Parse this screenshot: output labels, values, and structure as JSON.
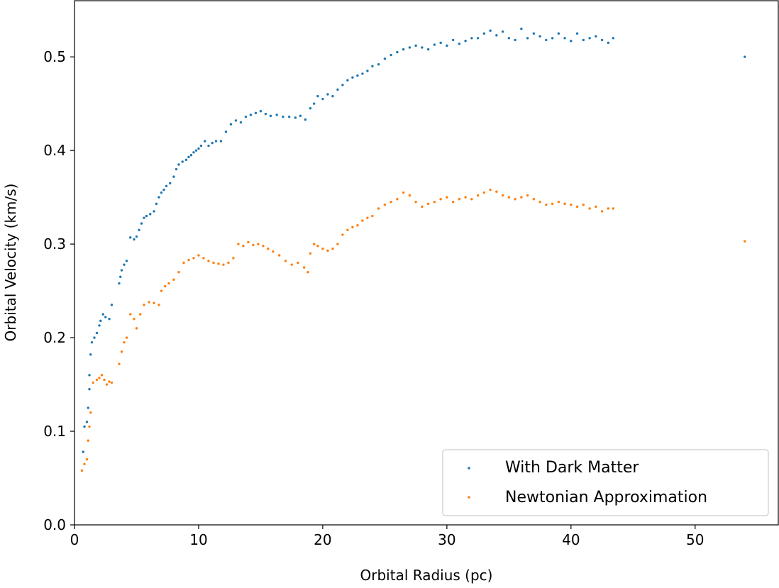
{
  "chart_data": {
    "type": "scatter",
    "xlabel": "Orbital Radius (pc)",
    "ylabel": "Orbital Velocity (km/s)",
    "xlim": [
      0,
      56.7
    ],
    "ylim": [
      0,
      0.56
    ],
    "x_ticks": [
      0,
      10,
      20,
      30,
      40,
      50
    ],
    "y_ticks": [
      0.0,
      0.1,
      0.2,
      0.3,
      0.4,
      0.5
    ],
    "x_tick_labels": [
      "0",
      "10",
      "20",
      "30",
      "40",
      "50"
    ],
    "y_tick_labels": [
      "0.0",
      "0.1",
      "0.2",
      "0.3",
      "0.4",
      "0.5"
    ],
    "grid": false,
    "legend_position": "lower-right",
    "series": [
      {
        "name": "With Dark Matter",
        "color": "#1f77b4",
        "x": [
          0.7,
          0.8,
          1.0,
          1.1,
          1.2,
          1.2,
          1.3,
          1.4,
          1.6,
          1.8,
          2.0,
          2.1,
          2.3,
          2.5,
          2.8,
          3.0,
          3.6,
          3.7,
          3.8,
          4.0,
          4.2,
          4.5,
          4.8,
          5.0,
          5.2,
          5.4,
          5.6,
          5.8,
          6.1,
          6.4,
          6.6,
          6.8,
          7.0,
          7.2,
          7.4,
          7.7,
          8.0,
          8.2,
          8.4,
          8.7,
          9.0,
          9.2,
          9.4,
          9.6,
          9.8,
          10.0,
          10.2,
          10.5,
          10.8,
          11.1,
          11.4,
          11.8,
          12.2,
          12.6,
          13.0,
          13.4,
          13.8,
          14.2,
          14.6,
          15.0,
          15.4,
          15.8,
          16.3,
          16.8,
          17.3,
          17.8,
          18.2,
          18.6,
          19.0,
          19.3,
          19.6,
          20.0,
          20.4,
          20.8,
          21.2,
          21.6,
          22.0,
          22.4,
          22.8,
          23.2,
          23.6,
          24.0,
          24.5,
          25.0,
          25.5,
          26.0,
          26.5,
          27.0,
          27.5,
          28.0,
          28.5,
          29.0,
          29.5,
          30.0,
          30.5,
          31.0,
          31.5,
          32.0,
          32.5,
          33.0,
          33.5,
          34.0,
          34.5,
          35.0,
          35.5,
          36.0,
          36.5,
          37.0,
          37.5,
          38.0,
          38.5,
          39.0,
          39.5,
          40.0,
          40.5,
          41.0,
          41.5,
          42.0,
          42.5,
          43.0,
          43.4,
          54.0
        ],
        "y": [
          0.078,
          0.105,
          0.11,
          0.125,
          0.145,
          0.16,
          0.182,
          0.195,
          0.2,
          0.205,
          0.213,
          0.218,
          0.225,
          0.222,
          0.22,
          0.235,
          0.258,
          0.265,
          0.272,
          0.278,
          0.282,
          0.307,
          0.305,
          0.308,
          0.315,
          0.322,
          0.328,
          0.33,
          0.332,
          0.335,
          0.343,
          0.35,
          0.355,
          0.358,
          0.362,
          0.365,
          0.372,
          0.38,
          0.385,
          0.388,
          0.39,
          0.393,
          0.395,
          0.398,
          0.4,
          0.402,
          0.405,
          0.41,
          0.405,
          0.408,
          0.41,
          0.41,
          0.42,
          0.428,
          0.432,
          0.43,
          0.436,
          0.438,
          0.44,
          0.442,
          0.439,
          0.437,
          0.438,
          0.436,
          0.436,
          0.435,
          0.437,
          0.433,
          0.445,
          0.45,
          0.458,
          0.455,
          0.46,
          0.458,
          0.465,
          0.47,
          0.475,
          0.478,
          0.48,
          0.482,
          0.485,
          0.49,
          0.492,
          0.498,
          0.502,
          0.505,
          0.508,
          0.51,
          0.512,
          0.51,
          0.508,
          0.513,
          0.515,
          0.512,
          0.518,
          0.514,
          0.517,
          0.52,
          0.52,
          0.525,
          0.528,
          0.523,
          0.527,
          0.52,
          0.518,
          0.53,
          0.52,
          0.525,
          0.522,
          0.518,
          0.52,
          0.525,
          0.52,
          0.517,
          0.525,
          0.518,
          0.52,
          0.522,
          0.518,
          0.515,
          0.52,
          0.5
        ]
      },
      {
        "name": "Newtonian Approximation",
        "color": "#ff7f0e",
        "x": [
          0.6,
          0.8,
          1.0,
          1.1,
          1.2,
          1.3,
          1.5,
          1.8,
          2.0,
          2.2,
          2.4,
          2.6,
          2.8,
          3.0,
          3.6,
          3.8,
          4.0,
          4.2,
          4.5,
          4.8,
          5.0,
          5.3,
          5.6,
          6.0,
          6.4,
          6.8,
          7.0,
          7.3,
          7.6,
          8.0,
          8.4,
          8.8,
          9.2,
          9.6,
          10.0,
          10.4,
          10.8,
          11.2,
          11.6,
          12.0,
          12.4,
          12.8,
          13.2,
          13.6,
          14.0,
          14.4,
          14.8,
          15.2,
          15.6,
          16.0,
          16.5,
          17.0,
          17.5,
          18.0,
          18.5,
          18.8,
          19.0,
          19.3,
          19.6,
          20.0,
          20.4,
          20.8,
          21.2,
          21.6,
          22.0,
          22.4,
          22.8,
          23.2,
          23.6,
          24.0,
          24.5,
          25.0,
          25.5,
          26.0,
          26.5,
          27.0,
          27.5,
          28.0,
          28.5,
          29.0,
          29.5,
          30.0,
          30.5,
          31.0,
          31.5,
          32.0,
          32.5,
          33.0,
          33.5,
          34.0,
          34.5,
          35.0,
          35.5,
          36.0,
          36.5,
          37.0,
          37.5,
          38.0,
          38.5,
          39.0,
          39.5,
          40.0,
          40.5,
          41.0,
          41.5,
          42.0,
          42.5,
          43.0,
          43.4,
          54.0
        ],
        "y": [
          0.058,
          0.065,
          0.07,
          0.09,
          0.105,
          0.12,
          0.152,
          0.155,
          0.157,
          0.16,
          0.155,
          0.15,
          0.153,
          0.152,
          0.172,
          0.185,
          0.195,
          0.2,
          0.225,
          0.22,
          0.21,
          0.225,
          0.235,
          0.238,
          0.237,
          0.235,
          0.25,
          0.255,
          0.258,
          0.262,
          0.27,
          0.28,
          0.283,
          0.285,
          0.288,
          0.285,
          0.282,
          0.28,
          0.279,
          0.278,
          0.28,
          0.285,
          0.3,
          0.298,
          0.302,
          0.299,
          0.3,
          0.298,
          0.295,
          0.292,
          0.288,
          0.282,
          0.278,
          0.28,
          0.275,
          0.27,
          0.29,
          0.3,
          0.298,
          0.295,
          0.293,
          0.295,
          0.3,
          0.31,
          0.315,
          0.318,
          0.32,
          0.325,
          0.328,
          0.33,
          0.338,
          0.342,
          0.345,
          0.348,
          0.355,
          0.352,
          0.345,
          0.34,
          0.343,
          0.345,
          0.348,
          0.35,
          0.345,
          0.348,
          0.35,
          0.348,
          0.352,
          0.355,
          0.358,
          0.356,
          0.352,
          0.35,
          0.348,
          0.35,
          0.352,
          0.348,
          0.345,
          0.342,
          0.343,
          0.345,
          0.343,
          0.342,
          0.34,
          0.342,
          0.338,
          0.34,
          0.335,
          0.338,
          0.338,
          0.303
        ]
      }
    ]
  }
}
